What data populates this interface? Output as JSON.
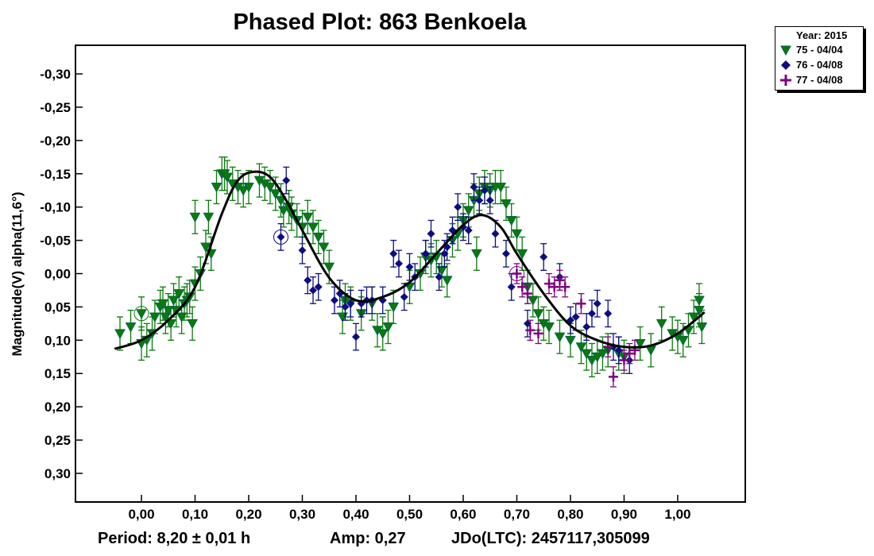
{
  "chart_data": {
    "type": "scatter",
    "title": "Phased Plot: 863 Benkoela",
    "xlabel": "",
    "ylabel": "Magnitude(V) alpha(11,6°)",
    "xlim": [
      -0.123,
      1.126
    ],
    "ylim": [
      -0.343,
      0.343
    ],
    "y_inverted": true,
    "grid": false,
    "legend_placement": "outside-top-right",
    "x_ticks": [
      0.0,
      0.1,
      0.2,
      0.3,
      0.4,
      0.5,
      0.6,
      0.7,
      0.8,
      0.9,
      1.0
    ],
    "x_tick_labels": [
      "0,00",
      "0,10",
      "0,20",
      "0,30",
      "0,40",
      "0,50",
      "0,60",
      "0,70",
      "0,80",
      "0,90",
      "1,00"
    ],
    "y_ticks": [
      -0.3,
      -0.25,
      -0.2,
      -0.15,
      -0.1,
      -0.05,
      0.0,
      0.05,
      0.1,
      0.15,
      0.2,
      0.25,
      0.3
    ],
    "y_tick_labels": [
      "-0,30",
      "-0,25",
      "-0,20",
      "-0,15",
      "-0,10",
      "-0,05",
      "0,00",
      "0,05",
      "0,10",
      "0,15",
      "0,20",
      "0,25",
      "0,30"
    ],
    "legend_title": "Year: 2015",
    "series": [
      {
        "name": "75 - 04/04",
        "marker": "triangle-down",
        "color": "#0a7a0a",
        "error": 0.025,
        "circled": [
          [
            0.0,
            0.06
          ]
        ],
        "points": [
          [
            -0.04,
            0.09
          ],
          [
            -0.02,
            0.08
          ],
          [
            0.0,
            0.06
          ],
          [
            0.0,
            0.105
          ],
          [
            0.01,
            0.1
          ],
          [
            0.02,
            0.09
          ],
          [
            0.025,
            0.065
          ],
          [
            0.035,
            0.05
          ],
          [
            0.04,
            0.045
          ],
          [
            0.045,
            0.065
          ],
          [
            0.05,
            0.055
          ],
          [
            0.055,
            0.075
          ],
          [
            0.06,
            0.04
          ],
          [
            0.065,
            0.055
          ],
          [
            0.07,
            0.03
          ],
          [
            0.075,
            0.065
          ],
          [
            0.08,
            0.045
          ],
          [
            0.085,
            0.04
          ],
          [
            0.09,
            0.035
          ],
          [
            0.095,
            0.075
          ],
          [
            0.1,
            0.015
          ],
          [
            0.11,
            0.0
          ],
          [
            0.12,
            -0.04
          ],
          [
            0.13,
            -0.03
          ],
          [
            0.1,
            -0.085
          ],
          [
            0.125,
            -0.085
          ],
          [
            0.14,
            -0.13
          ],
          [
            0.15,
            -0.15
          ],
          [
            0.155,
            -0.15
          ],
          [
            0.16,
            -0.145
          ],
          [
            0.17,
            -0.135
          ],
          [
            0.18,
            -0.13
          ],
          [
            0.19,
            -0.125
          ],
          [
            0.2,
            -0.13
          ],
          [
            0.22,
            -0.14
          ],
          [
            0.23,
            -0.135
          ],
          [
            0.24,
            -0.13
          ],
          [
            0.25,
            -0.12
          ],
          [
            0.26,
            -0.11
          ],
          [
            0.265,
            -0.095
          ],
          [
            0.275,
            -0.1
          ],
          [
            0.28,
            -0.09
          ],
          [
            0.29,
            -0.08
          ],
          [
            0.3,
            -0.07
          ],
          [
            0.31,
            -0.085
          ],
          [
            0.32,
            -0.07
          ],
          [
            0.33,
            -0.055
          ],
          [
            0.34,
            -0.04
          ],
          [
            0.35,
            -0.01
          ],
          [
            0.375,
            0.065
          ],
          [
            0.38,
            0.04
          ],
          [
            0.39,
            0.045
          ],
          [
            0.41,
            0.06
          ],
          [
            0.43,
            0.045
          ],
          [
            0.44,
            0.085
          ],
          [
            0.45,
            0.09
          ],
          [
            0.46,
            0.08
          ],
          [
            0.47,
            0.05
          ],
          [
            0.5,
            0.02
          ],
          [
            0.52,
            0.0
          ],
          [
            0.53,
            -0.025
          ],
          [
            0.54,
            -0.02
          ],
          [
            0.55,
            -0.025
          ],
          [
            0.56,
            -0.005
          ],
          [
            0.57,
            0.01
          ],
          [
            0.58,
            -0.05
          ],
          [
            0.59,
            -0.06
          ],
          [
            0.6,
            -0.08
          ],
          [
            0.61,
            -0.095
          ],
          [
            0.62,
            -0.11
          ],
          [
            0.625,
            -0.03
          ],
          [
            0.63,
            -0.12
          ],
          [
            0.64,
            -0.13
          ],
          [
            0.65,
            -0.125
          ],
          [
            0.66,
            -0.13
          ],
          [
            0.67,
            -0.13
          ],
          [
            0.68,
            -0.105
          ],
          [
            0.69,
            -0.08
          ],
          [
            0.7,
            -0.06
          ],
          [
            0.71,
            -0.03
          ],
          [
            0.72,
            0.02
          ],
          [
            0.73,
            0.04
          ],
          [
            0.74,
            0.06
          ],
          [
            0.75,
            0.075
          ],
          [
            0.76,
            0.08
          ],
          [
            0.78,
            0.095
          ],
          [
            0.8,
            0.1
          ],
          [
            0.82,
            0.11
          ],
          [
            0.83,
            0.12
          ],
          [
            0.84,
            0.13
          ],
          [
            0.85,
            0.125
          ],
          [
            0.86,
            0.12
          ],
          [
            0.87,
            0.115
          ],
          [
            0.89,
            0.12
          ],
          [
            0.9,
            0.125
          ],
          [
            0.93,
            0.105
          ],
          [
            0.95,
            0.115
          ],
          [
            0.97,
            0.075
          ],
          [
            0.99,
            0.09
          ],
          [
            1.0,
            0.095
          ],
          [
            1.01,
            0.1
          ],
          [
            1.02,
            0.085
          ],
          [
            1.03,
            0.065
          ],
          [
            1.04,
            0.04
          ],
          [
            1.045,
            0.08
          ],
          [
            1.04,
            0.055
          ]
        ]
      },
      {
        "name": "76 - 04/08",
        "marker": "diamond",
        "color": "#0d0d80",
        "error": 0.02,
        "circled": [
          [
            0.26,
            -0.055
          ]
        ],
        "points": [
          [
            0.26,
            -0.055
          ],
          [
            0.27,
            -0.14
          ],
          [
            0.3,
            -0.035
          ],
          [
            0.31,
            0.01
          ],
          [
            0.32,
            0.025
          ],
          [
            0.33,
            0.02
          ],
          [
            0.36,
            0.04
          ],
          [
            0.37,
            0.03
          ],
          [
            0.38,
            0.05
          ],
          [
            0.39,
            0.045
          ],
          [
            0.4,
            0.095
          ],
          [
            0.41,
            0.045
          ],
          [
            0.42,
            0.04
          ],
          [
            0.43,
            0.04
          ],
          [
            0.45,
            0.04
          ],
          [
            0.47,
            -0.03
          ],
          [
            0.48,
            -0.015
          ],
          [
            0.49,
            0.035
          ],
          [
            0.5,
            -0.01
          ],
          [
            0.51,
            0.005
          ],
          [
            0.53,
            -0.03
          ],
          [
            0.54,
            -0.06
          ],
          [
            0.555,
            0.005
          ],
          [
            0.565,
            -0.03
          ],
          [
            0.57,
            -0.04
          ],
          [
            0.58,
            -0.065
          ],
          [
            0.59,
            -0.1
          ],
          [
            0.6,
            -0.07
          ],
          [
            0.61,
            -0.065
          ],
          [
            0.62,
            -0.13
          ],
          [
            0.63,
            -0.11
          ],
          [
            0.64,
            -0.125
          ],
          [
            0.65,
            -0.11
          ],
          [
            0.66,
            -0.06
          ],
          [
            0.68,
            -0.03
          ],
          [
            0.69,
            0.02
          ],
          [
            0.72,
            0.075
          ],
          [
            0.75,
            -0.025
          ],
          [
            0.78,
            0.005
          ],
          [
            0.8,
            0.07
          ],
          [
            0.81,
            0.065
          ],
          [
            0.83,
            0.08
          ],
          [
            0.84,
            0.06
          ],
          [
            0.85,
            0.045
          ],
          [
            0.87,
            0.06
          ],
          [
            0.88,
            0.11
          ],
          [
            0.89,
            0.115
          ],
          [
            0.91,
            0.13
          ]
        ]
      },
      {
        "name": "77 - 04/08",
        "marker": "plus",
        "color": "#800080",
        "error": 0.015,
        "circled": [
          [
            0.7,
            0.0
          ]
        ],
        "points": [
          [
            0.7,
            0.0
          ],
          [
            0.71,
            0.02
          ],
          [
            0.72,
            0.03
          ],
          [
            0.725,
            0.085
          ],
          [
            0.74,
            0.09
          ],
          [
            0.76,
            0.015
          ],
          [
            0.77,
            0.02
          ],
          [
            0.78,
            0.01
          ],
          [
            0.79,
            0.02
          ],
          [
            0.82,
            0.045
          ],
          [
            0.87,
            0.11
          ],
          [
            0.88,
            0.155
          ],
          [
            0.9,
            0.13
          ],
          [
            0.91,
            0.12
          ],
          [
            0.92,
            0.115
          ]
        ]
      }
    ],
    "fit_curve": {
      "color": "#000000",
      "points": [
        [
          -0.05,
          0.113
        ],
        [
          0.0,
          0.1
        ],
        [
          0.05,
          0.07
        ],
        [
          0.1,
          0.02
        ],
        [
          0.15,
          -0.09
        ],
        [
          0.18,
          -0.14
        ],
        [
          0.21,
          -0.153
        ],
        [
          0.24,
          -0.145
        ],
        [
          0.27,
          -0.11
        ],
        [
          0.3,
          -0.065
        ],
        [
          0.35,
          0.006
        ],
        [
          0.4,
          0.04
        ],
        [
          0.45,
          0.035
        ],
        [
          0.5,
          0.013
        ],
        [
          0.55,
          -0.03
        ],
        [
          0.6,
          -0.073
        ],
        [
          0.635,
          -0.088
        ],
        [
          0.67,
          -0.07
        ],
        [
          0.7,
          -0.03
        ],
        [
          0.75,
          0.03
        ],
        [
          0.8,
          0.078
        ],
        [
          0.85,
          0.1
        ],
        [
          0.9,
          0.11
        ],
        [
          0.95,
          0.108
        ],
        [
          1.0,
          0.09
        ],
        [
          1.05,
          0.058
        ]
      ]
    }
  },
  "footer": {
    "period": "Period: 8,20 ± 0,01 h",
    "amp": "Amp: 0,27",
    "jd": "JDo(LTC): 2457117,305099"
  }
}
